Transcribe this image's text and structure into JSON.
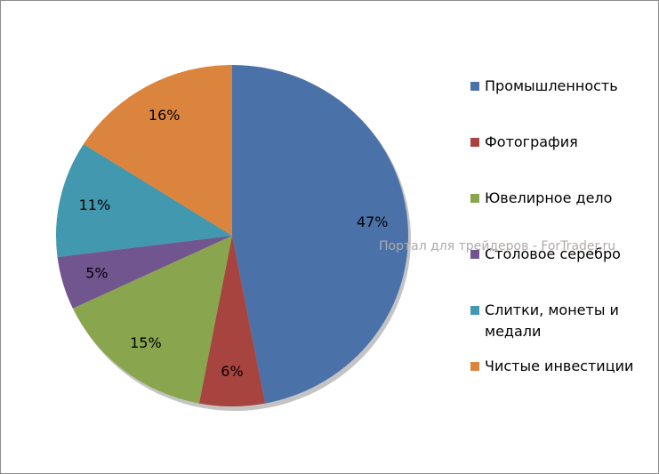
{
  "chart_data": {
    "type": "pie",
    "categories": [
      "Промышленность",
      "Фотография",
      "Ювелирное дело",
      "Столовое серебро",
      "Слитки, монеты и медали",
      "Чистые инвестиции"
    ],
    "values": [
      47,
      6,
      15,
      5,
      11,
      16
    ],
    "value_labels": [
      "47%",
      "6%",
      "15%",
      "5%",
      "11%",
      "16%"
    ],
    "colors": [
      "#4a72a8",
      "#a8443f",
      "#89a54e",
      "#71558f",
      "#4198af",
      "#db843d"
    ],
    "legend": "right",
    "watermark": "Портал для трейдеров - ForTrader.ru"
  }
}
